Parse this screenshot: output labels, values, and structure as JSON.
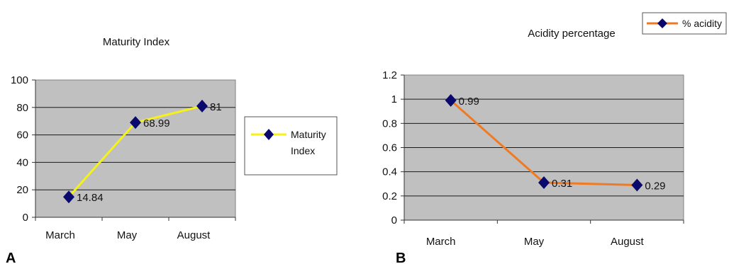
{
  "panels": {
    "a_label": "A",
    "b_label": "B"
  },
  "chart_data": [
    {
      "type": "line",
      "title": "Maturity Index",
      "xlabel": "",
      "ylabel": "",
      "categories": [
        "March",
        "May",
        "August"
      ],
      "ylim": [
        0,
        100
      ],
      "yticks": [
        "0",
        "20",
        "40",
        "60",
        "80",
        "100"
      ],
      "grid": true,
      "legend_position": "right",
      "series": [
        {
          "name": "Maturity Index",
          "values": [
            14.84,
            68.99,
            81
          ],
          "labels": [
            "14.84",
            "68.99",
            "81"
          ],
          "line_color": "#f5f219",
          "marker_color": "#0a0a6e"
        }
      ],
      "plot_background": "#c0c0c0"
    },
    {
      "type": "line",
      "title": "Acidity percentage",
      "xlabel": "",
      "ylabel": "",
      "categories": [
        "March",
        "May",
        "August"
      ],
      "ylim": [
        0,
        1.2
      ],
      "yticks": [
        "0",
        "0.2",
        "0.4",
        "0.6",
        "0.8",
        "1",
        "1.2"
      ],
      "grid": true,
      "legend_position": "top-right",
      "series": [
        {
          "name": "% acidity",
          "values": [
            0.99,
            0.31,
            0.29
          ],
          "labels": [
            "0.99",
            "0.31",
            "0.29"
          ],
          "line_color": "#f07a22",
          "marker_color": "#0a0a6e"
        }
      ],
      "plot_background": "#c0c0c0"
    }
  ]
}
